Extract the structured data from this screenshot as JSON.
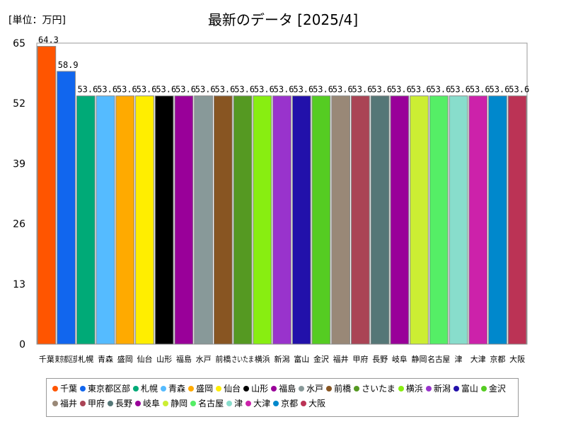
{
  "unit_label": "[単位：万円]",
  "chart_data": {
    "type": "bar",
    "title": "最新のデータ [2025/4]",
    "categories": [
      "千葉",
      "東京都区部",
      "札幌",
      "青森",
      "盛岡",
      "仙台",
      "山形",
      "福島",
      "水戸",
      "前橋",
      "さいたま",
      "横浜",
      "新潟",
      "富山",
      "金沢",
      "福井",
      "甲府",
      "長野",
      "岐阜",
      "静岡",
      "名古屋",
      "津",
      "大津",
      "京都",
      "大阪"
    ],
    "values": [
      64.3,
      58.9,
      53.6,
      53.6,
      53.6,
      53.6,
      53.6,
      53.6,
      53.6,
      53.6,
      53.6,
      53.6,
      53.6,
      53.6,
      53.6,
      53.6,
      53.6,
      53.6,
      53.6,
      53.6,
      53.6,
      53.6,
      53.6,
      53.6,
      53.6
    ],
    "value_labels": [
      "64.3",
      "58.9",
      "53.6",
      "53.6",
      "53.6",
      "53.6",
      "53.6",
      "53.6",
      "53.6",
      "53.6",
      "53.6",
      "53.6",
      "53.6",
      "53.6",
      "53.6",
      "53.6",
      "53.6",
      "53.6",
      "53.6",
      "53.6",
      "53.6",
      "53.6",
      "53.6",
      "53.6",
      "53.6"
    ],
    "colors": [
      "#ff5500",
      "#1166ee",
      "#00aa77",
      "#55bbff",
      "#ffaa00",
      "#ffee00",
      "#000000",
      "#990099",
      "#889999",
      "#885522",
      "#559922",
      "#88ee11",
      "#9933cc",
      "#2211aa",
      "#55cc22",
      "#998877",
      "#aa4455",
      "#557777",
      "#990099",
      "#ccee33",
      "#55ee66",
      "#88ddcc",
      "#cc22aa",
      "#0088cc",
      "#bb3355"
    ],
    "ylim": [
      0,
      65
    ],
    "yticks": [
      "0",
      "13",
      "26",
      "39",
      "52",
      "65"
    ],
    "grid": false,
    "legend": "bottom"
  }
}
